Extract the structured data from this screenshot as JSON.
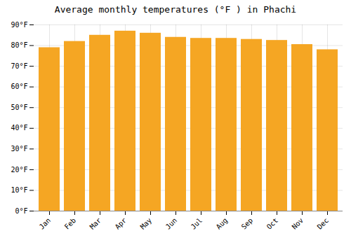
{
  "chart_data": {
    "type": "bar",
    "title": "Average monthly temperatures (°F ) in Phachi",
    "categories": [
      "Jan",
      "Feb",
      "Mar",
      "Apr",
      "May",
      "Jun",
      "Jul",
      "Aug",
      "Sep",
      "Oct",
      "Nov",
      "Dec"
    ],
    "values": [
      79,
      82,
      85,
      87,
      86,
      84,
      83.5,
      83.5,
      83,
      82.5,
      80.5,
      78
    ],
    "color": "#F5A623",
    "ylim": [
      0,
      90
    ],
    "yticks": [
      {
        "value": 0,
        "label": "0°F"
      },
      {
        "value": 10,
        "label": "10°F"
      },
      {
        "value": 20,
        "label": "20°F"
      },
      {
        "value": 30,
        "label": "30°F"
      },
      {
        "value": 40,
        "label": "40°F"
      },
      {
        "value": 50,
        "label": "50°F"
      },
      {
        "value": 60,
        "label": "60°F"
      },
      {
        "value": 70,
        "label": "70°F"
      },
      {
        "value": 80,
        "label": "80°F"
      },
      {
        "value": 90,
        "label": "90°F"
      }
    ],
    "grid": true
  }
}
